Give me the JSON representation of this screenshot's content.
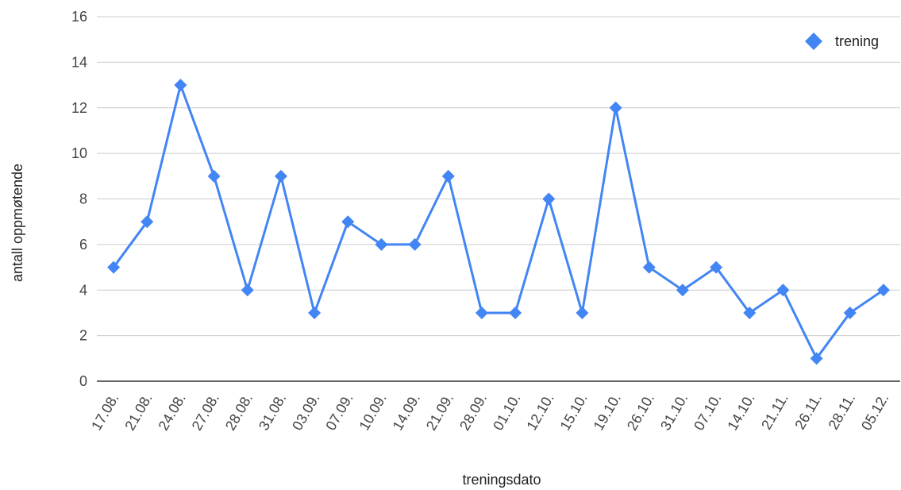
{
  "colors": {
    "series": "#4285f4",
    "grid": "#cccccc",
    "baseline": "#333333",
    "background": "#ffffff"
  },
  "chart_data": {
    "type": "line",
    "title": "",
    "xlabel": "treningsdato",
    "ylabel": "antall oppmøtende",
    "ylim": [
      0,
      16
    ],
    "yticks": [
      0,
      2,
      4,
      6,
      8,
      10,
      12,
      14,
      16
    ],
    "grid": true,
    "legend": "top-right",
    "marker": "diamond",
    "categories": [
      "17.08.",
      "21.08.",
      "24.08.",
      "27.08.",
      "28.08.",
      "31.08.",
      "03.09.",
      "07.09.",
      "10.09.",
      "14.09.",
      "21.09.",
      "28.09.",
      "01.10.",
      "12.10.",
      "15.10.",
      "19.10.",
      "26.10.",
      "31.10.",
      "07.10.",
      "14.10.",
      "21.11.",
      "26.11.",
      "28.11.",
      "05.12."
    ],
    "series": [
      {
        "name": "trening",
        "values": [
          5,
          7,
          13,
          9,
          4,
          9,
          3,
          7,
          6,
          6,
          9,
          3,
          3,
          8,
          3,
          12,
          5,
          4,
          5,
          3,
          4,
          1,
          3,
          4
        ]
      }
    ]
  }
}
